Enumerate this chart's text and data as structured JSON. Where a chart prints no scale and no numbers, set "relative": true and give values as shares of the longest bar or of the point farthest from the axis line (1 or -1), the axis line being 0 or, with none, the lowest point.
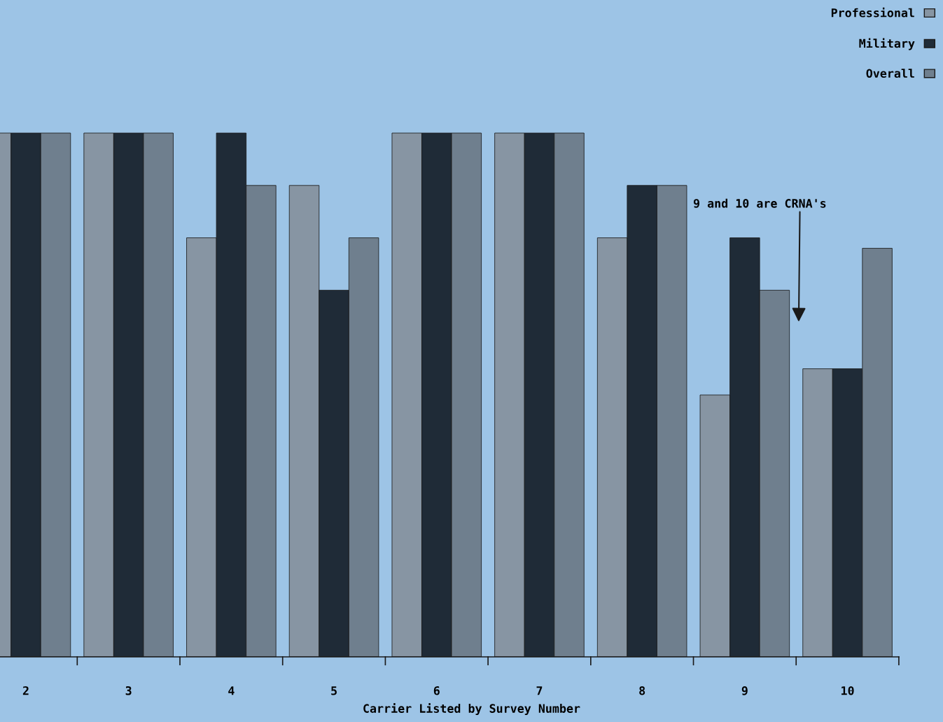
{
  "chart_data": {
    "type": "bar",
    "relative": true,
    "xlabel": "Carrier Listed by Survey Number",
    "categories": [
      "2",
      "3",
      "4",
      "5",
      "6",
      "7",
      "8",
      "9",
      "10"
    ],
    "series": [
      {
        "name": "Professional",
        "color": "#8795a3",
        "values": [
          1,
          1,
          0.8,
          0.9,
          1,
          1,
          0.8,
          0.5,
          0.55
        ]
      },
      {
        "name": "Military",
        "color": "#1f2b37",
        "values": [
          1,
          1,
          1,
          0.7,
          1,
          1,
          0.9,
          0.8,
          0.55
        ]
      },
      {
        "name": "Overall",
        "color": "#6f7f8e",
        "values": [
          1,
          1,
          0.9,
          0.8,
          1,
          1,
          0.9,
          0.7,
          0.78
        ]
      }
    ],
    "annotations": [
      "9 and 10 are CRNA's"
    ],
    "legend": "top right",
    "grid": false
  }
}
